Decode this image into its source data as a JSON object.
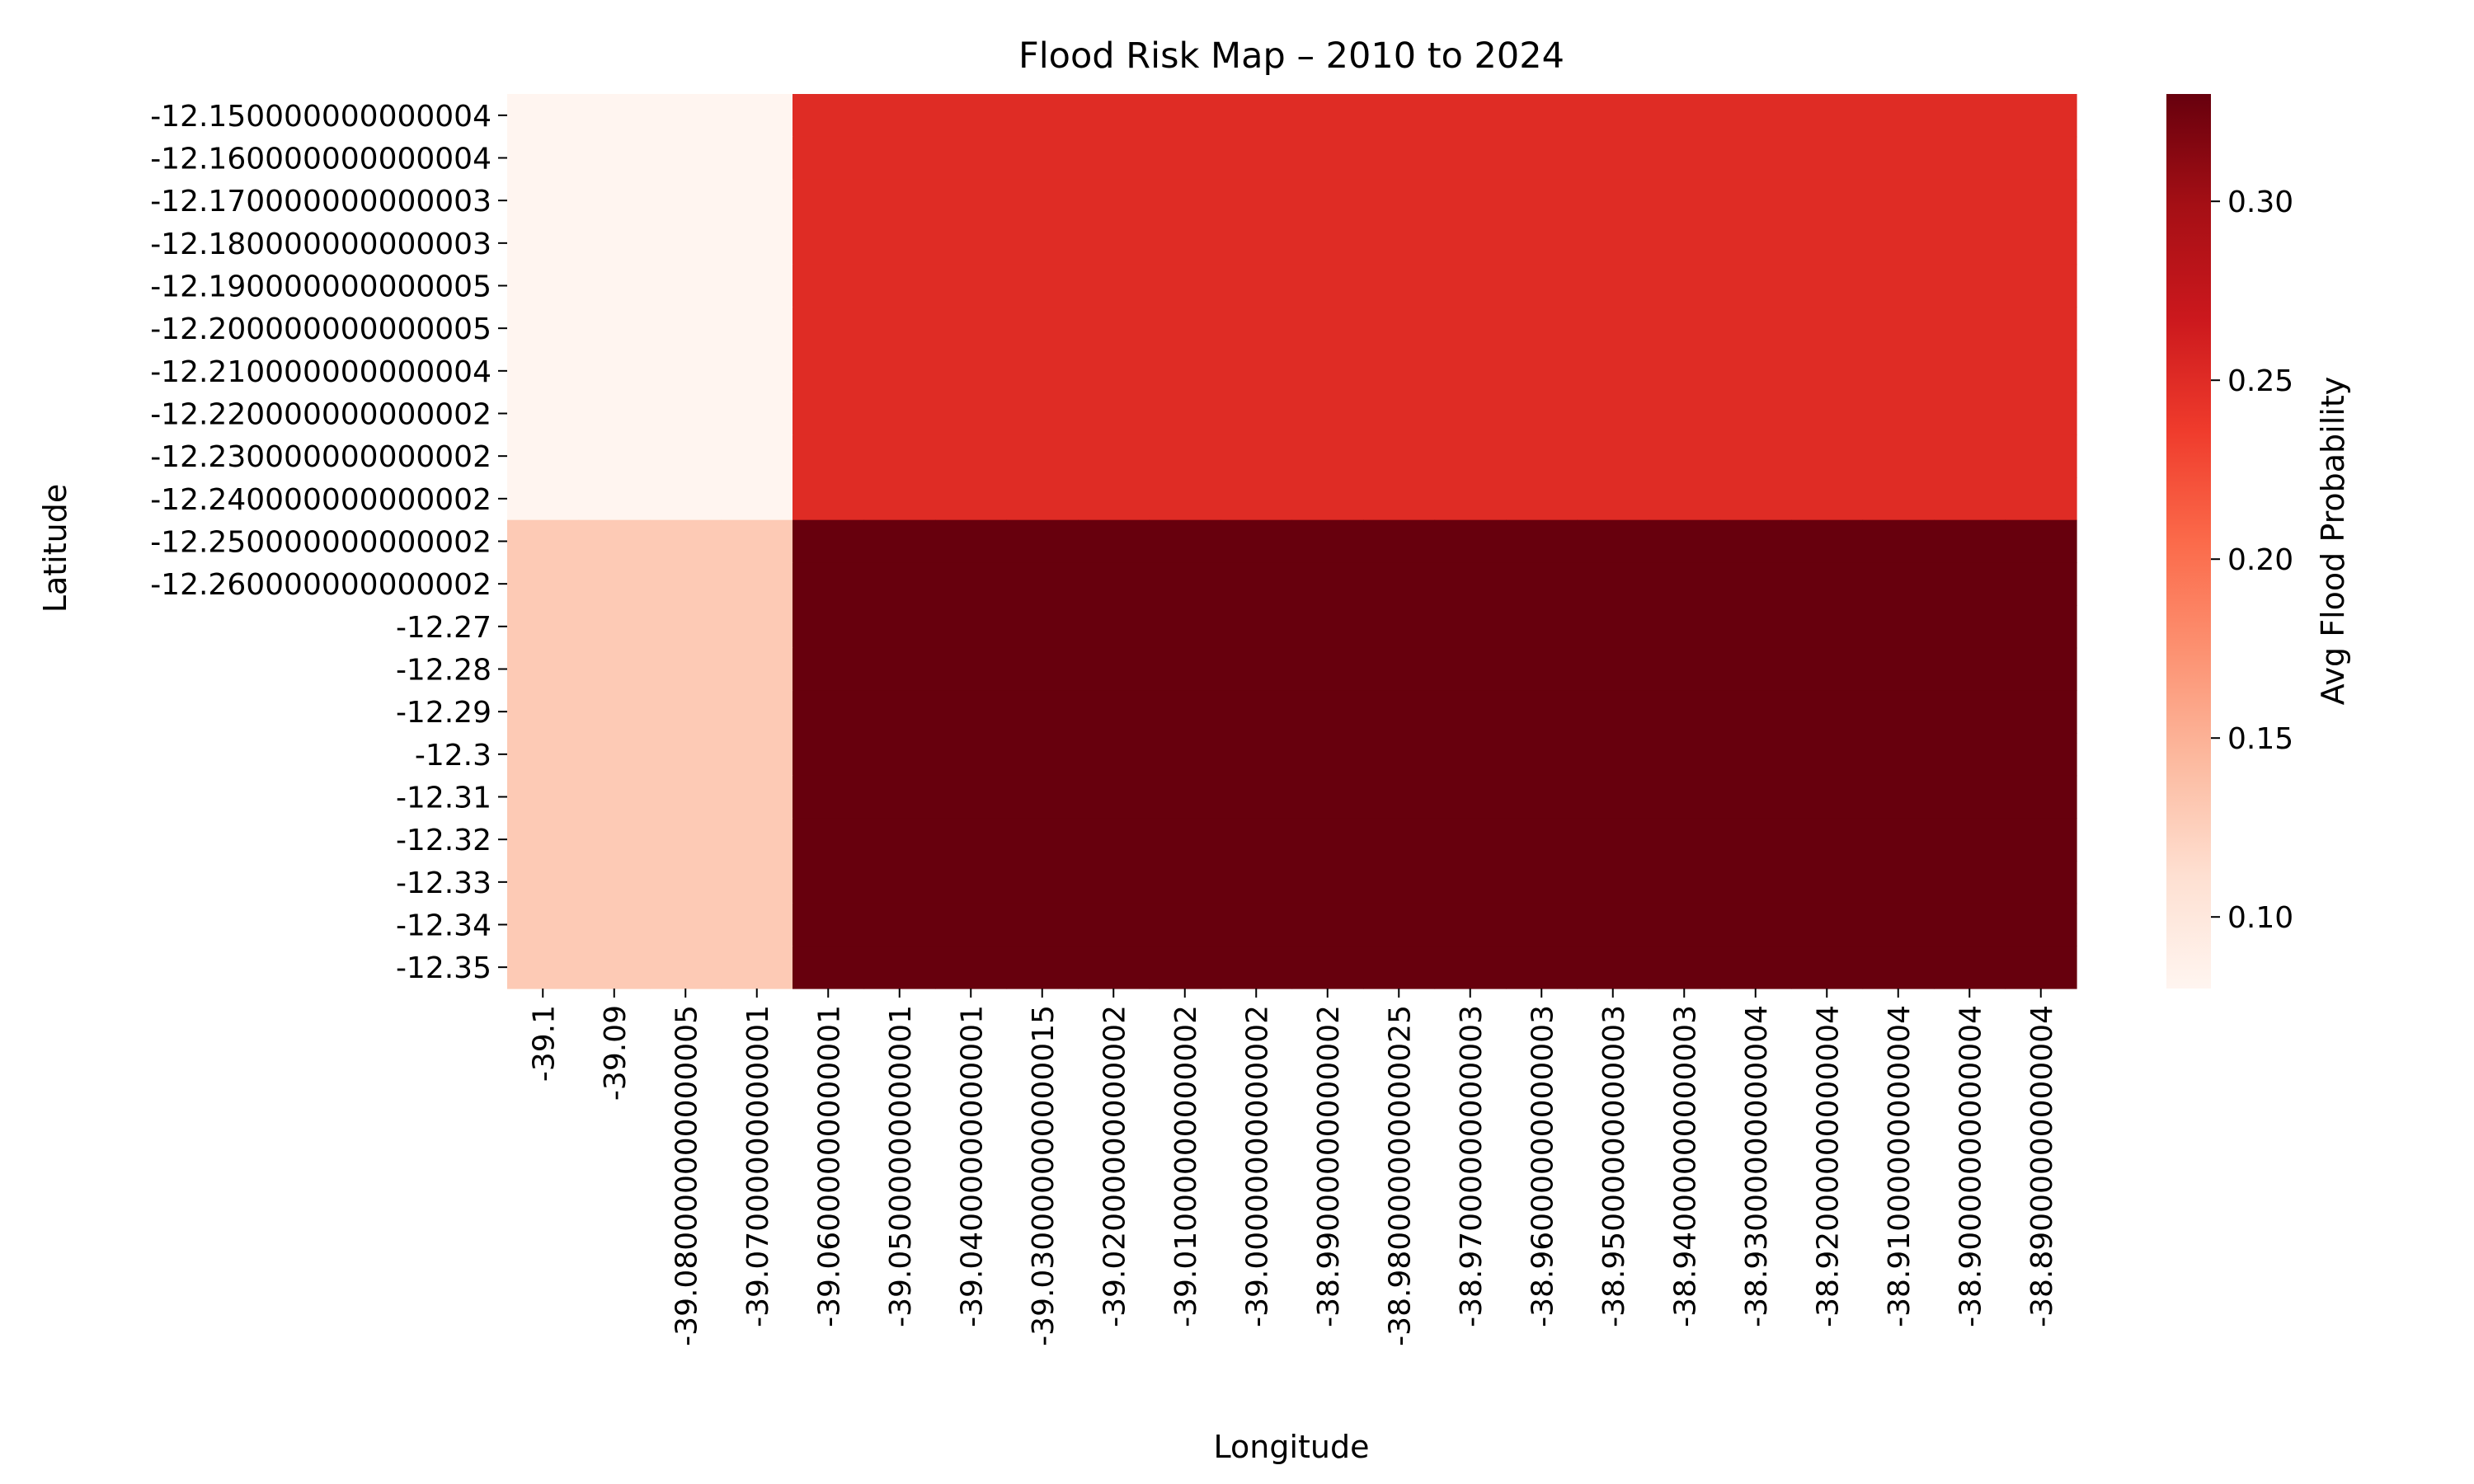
{
  "chart_data": {
    "type": "heatmap",
    "title": "Flood Risk Map – 2010 to 2024",
    "xlabel": "Longitude",
    "ylabel": "Latitude",
    "x_categories": [
      "-39.1",
      "-39.09",
      "-39.080000000000005",
      "-39.07000000000001",
      "-39.06000000000001",
      "-39.05000000000001",
      "-39.04000000000001",
      "-39.030000000000015",
      "-39.02000000000002",
      "-39.01000000000002",
      "-39.00000000000002",
      "-38.99000000000002",
      "-38.980000000000025",
      "-38.97000000000003",
      "-38.96000000000003",
      "-38.95000000000003",
      "-38.94000000000003",
      "-38.93000000000004",
      "-38.92000000000004",
      "-38.91000000000004",
      "-38.90000000000004",
      "-38.89000000000004"
    ],
    "y_categories": [
      "-12.150000000000004",
      "-12.160000000000004",
      "-12.170000000000003",
      "-12.180000000000003",
      "-12.190000000000005",
      "-12.200000000000005",
      "-12.210000000000004",
      "-12.220000000000002",
      "-12.230000000000002",
      "-12.240000000000002",
      "-12.250000000000002",
      "-12.260000000000002",
      "-12.27",
      "-12.28",
      "-12.29",
      "-12.3",
      "-12.31",
      "-12.32",
      "-12.33",
      "-12.34",
      "-12.35"
    ],
    "values": [
      [
        0.08,
        0.08,
        0.08,
        0.08,
        0.25,
        0.25,
        0.25,
        0.25,
        0.25,
        0.25,
        0.25,
        0.25,
        0.25,
        0.25,
        0.25,
        0.25,
        0.25,
        0.25,
        0.25,
        0.25,
        0.25,
        0.25
      ],
      [
        0.08,
        0.08,
        0.08,
        0.08,
        0.25,
        0.25,
        0.25,
        0.25,
        0.25,
        0.25,
        0.25,
        0.25,
        0.25,
        0.25,
        0.25,
        0.25,
        0.25,
        0.25,
        0.25,
        0.25,
        0.25,
        0.25
      ],
      [
        0.08,
        0.08,
        0.08,
        0.08,
        0.25,
        0.25,
        0.25,
        0.25,
        0.25,
        0.25,
        0.25,
        0.25,
        0.25,
        0.25,
        0.25,
        0.25,
        0.25,
        0.25,
        0.25,
        0.25,
        0.25,
        0.25
      ],
      [
        0.08,
        0.08,
        0.08,
        0.08,
        0.25,
        0.25,
        0.25,
        0.25,
        0.25,
        0.25,
        0.25,
        0.25,
        0.25,
        0.25,
        0.25,
        0.25,
        0.25,
        0.25,
        0.25,
        0.25,
        0.25,
        0.25
      ],
      [
        0.08,
        0.08,
        0.08,
        0.08,
        0.25,
        0.25,
        0.25,
        0.25,
        0.25,
        0.25,
        0.25,
        0.25,
        0.25,
        0.25,
        0.25,
        0.25,
        0.25,
        0.25,
        0.25,
        0.25,
        0.25,
        0.25
      ],
      [
        0.08,
        0.08,
        0.08,
        0.08,
        0.25,
        0.25,
        0.25,
        0.25,
        0.25,
        0.25,
        0.25,
        0.25,
        0.25,
        0.25,
        0.25,
        0.25,
        0.25,
        0.25,
        0.25,
        0.25,
        0.25,
        0.25
      ],
      [
        0.08,
        0.08,
        0.08,
        0.08,
        0.25,
        0.25,
        0.25,
        0.25,
        0.25,
        0.25,
        0.25,
        0.25,
        0.25,
        0.25,
        0.25,
        0.25,
        0.25,
        0.25,
        0.25,
        0.25,
        0.25,
        0.25
      ],
      [
        0.08,
        0.08,
        0.08,
        0.08,
        0.25,
        0.25,
        0.25,
        0.25,
        0.25,
        0.25,
        0.25,
        0.25,
        0.25,
        0.25,
        0.25,
        0.25,
        0.25,
        0.25,
        0.25,
        0.25,
        0.25,
        0.25
      ],
      [
        0.08,
        0.08,
        0.08,
        0.08,
        0.25,
        0.25,
        0.25,
        0.25,
        0.25,
        0.25,
        0.25,
        0.25,
        0.25,
        0.25,
        0.25,
        0.25,
        0.25,
        0.25,
        0.25,
        0.25,
        0.25,
        0.25
      ],
      [
        0.08,
        0.08,
        0.08,
        0.08,
        0.25,
        0.25,
        0.25,
        0.25,
        0.25,
        0.25,
        0.25,
        0.25,
        0.25,
        0.25,
        0.25,
        0.25,
        0.25,
        0.25,
        0.25,
        0.25,
        0.25,
        0.25
      ],
      [
        0.13,
        0.13,
        0.13,
        0.13,
        0.33,
        0.33,
        0.33,
        0.33,
        0.33,
        0.33,
        0.33,
        0.33,
        0.33,
        0.33,
        0.33,
        0.33,
        0.33,
        0.33,
        0.33,
        0.33,
        0.33,
        0.33
      ],
      [
        0.13,
        0.13,
        0.13,
        0.13,
        0.33,
        0.33,
        0.33,
        0.33,
        0.33,
        0.33,
        0.33,
        0.33,
        0.33,
        0.33,
        0.33,
        0.33,
        0.33,
        0.33,
        0.33,
        0.33,
        0.33,
        0.33
      ],
      [
        0.13,
        0.13,
        0.13,
        0.13,
        0.33,
        0.33,
        0.33,
        0.33,
        0.33,
        0.33,
        0.33,
        0.33,
        0.33,
        0.33,
        0.33,
        0.33,
        0.33,
        0.33,
        0.33,
        0.33,
        0.33,
        0.33
      ],
      [
        0.13,
        0.13,
        0.13,
        0.13,
        0.33,
        0.33,
        0.33,
        0.33,
        0.33,
        0.33,
        0.33,
        0.33,
        0.33,
        0.33,
        0.33,
        0.33,
        0.33,
        0.33,
        0.33,
        0.33,
        0.33,
        0.33
      ],
      [
        0.13,
        0.13,
        0.13,
        0.13,
        0.33,
        0.33,
        0.33,
        0.33,
        0.33,
        0.33,
        0.33,
        0.33,
        0.33,
        0.33,
        0.33,
        0.33,
        0.33,
        0.33,
        0.33,
        0.33,
        0.33,
        0.33
      ],
      [
        0.13,
        0.13,
        0.13,
        0.13,
        0.33,
        0.33,
        0.33,
        0.33,
        0.33,
        0.33,
        0.33,
        0.33,
        0.33,
        0.33,
        0.33,
        0.33,
        0.33,
        0.33,
        0.33,
        0.33,
        0.33,
        0.33
      ],
      [
        0.13,
        0.13,
        0.13,
        0.13,
        0.33,
        0.33,
        0.33,
        0.33,
        0.33,
        0.33,
        0.33,
        0.33,
        0.33,
        0.33,
        0.33,
        0.33,
        0.33,
        0.33,
        0.33,
        0.33,
        0.33,
        0.33
      ],
      [
        0.13,
        0.13,
        0.13,
        0.13,
        0.33,
        0.33,
        0.33,
        0.33,
        0.33,
        0.33,
        0.33,
        0.33,
        0.33,
        0.33,
        0.33,
        0.33,
        0.33,
        0.33,
        0.33,
        0.33,
        0.33,
        0.33
      ],
      [
        0.13,
        0.13,
        0.13,
        0.13,
        0.33,
        0.33,
        0.33,
        0.33,
        0.33,
        0.33,
        0.33,
        0.33,
        0.33,
        0.33,
        0.33,
        0.33,
        0.33,
        0.33,
        0.33,
        0.33,
        0.33,
        0.33
      ],
      [
        0.13,
        0.13,
        0.13,
        0.13,
        0.33,
        0.33,
        0.33,
        0.33,
        0.33,
        0.33,
        0.33,
        0.33,
        0.33,
        0.33,
        0.33,
        0.33,
        0.33,
        0.33,
        0.33,
        0.33,
        0.33,
        0.33
      ],
      [
        0.13,
        0.13,
        0.13,
        0.13,
        0.33,
        0.33,
        0.33,
        0.33,
        0.33,
        0.33,
        0.33,
        0.33,
        0.33,
        0.33,
        0.33,
        0.33,
        0.33,
        0.33,
        0.33,
        0.33,
        0.33,
        0.33
      ]
    ],
    "colorbar": {
      "label": "Avg Flood Probability",
      "ticks": [
        "0.10",
        "0.15",
        "0.20",
        "0.25",
        "0.30"
      ],
      "tick_values": [
        0.1,
        0.15,
        0.2,
        0.25,
        0.3
      ],
      "vmin": 0.08,
      "vmax": 0.33,
      "colormap": "Reds",
      "colors": [
        "#fff5f0",
        "#fee0d2",
        "#fcbba1",
        "#fc9272",
        "#fb6a4a",
        "#ef3b2c",
        "#cb181d",
        "#a50f15",
        "#67000d"
      ]
    },
    "grid": false
  }
}
